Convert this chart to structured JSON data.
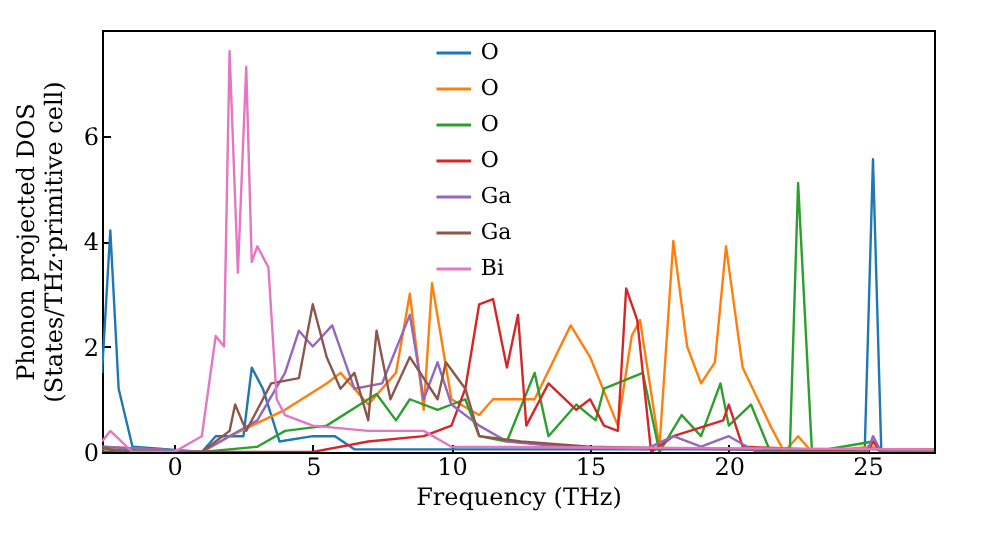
{
  "chart_data": {
    "type": "line",
    "xlabel": "Frequency (THz)",
    "ylabel": "Phonon projected DOS\n(States/THz·primitive cell)",
    "xlim": [
      -2.6,
      27.4
    ],
    "ylim": [
      0,
      8
    ],
    "xticks": [
      0,
      5,
      10,
      15,
      20,
      25
    ],
    "yticks": [
      0,
      2,
      4,
      6
    ],
    "grid": false,
    "legend": "top",
    "series": [
      {
        "name": "O",
        "color": "#1f77b4",
        "x": [
          -2.6,
          -2.3,
          -2.0,
          -1.5,
          1.0,
          1.5,
          2.5,
          2.8,
          3.2,
          3.8,
          5.0,
          5.8,
          6.5,
          10,
          15,
          20,
          24.9,
          25.2,
          25.5,
          27.4
        ],
        "values": [
          1.5,
          4.2,
          1.2,
          0.1,
          0.0,
          0.3,
          0.3,
          1.6,
          1.2,
          0.2,
          0.3,
          0.3,
          0.05,
          0.05,
          0.05,
          0.05,
          0.0,
          5.55,
          0.0,
          0.0
        ]
      },
      {
        "name": "O",
        "color": "#ff7f0e",
        "x": [
          -2.6,
          1.0,
          2.0,
          4.0,
          5.5,
          6.0,
          7.0,
          8.0,
          8.5,
          9.0,
          9.3,
          10.0,
          11.0,
          11.5,
          13.0,
          14.3,
          15.0,
          16.0,
          16.5,
          16.8,
          17.5,
          18.0,
          18.5,
          19.0,
          19.5,
          19.9,
          20.5,
          21.5,
          22.0,
          22.5,
          23.0,
          25.2,
          25.5,
          27.4
        ],
        "values": [
          0.1,
          0.0,
          0.3,
          0.8,
          1.3,
          1.5,
          0.9,
          1.5,
          3.0,
          0.8,
          3.2,
          1.0,
          0.7,
          1.0,
          1.0,
          2.4,
          1.8,
          0.5,
          2.2,
          2.5,
          0.1,
          4.0,
          2.0,
          1.3,
          1.7,
          3.9,
          1.6,
          0.5,
          0.0,
          0.3,
          0.0,
          0.1,
          0.0,
          0.0
        ]
      },
      {
        "name": "O",
        "color": "#2ca02c",
        "x": [
          -2.6,
          1.0,
          3.0,
          4.0,
          5.5,
          7.3,
          8.0,
          8.5,
          9.5,
          10.5,
          11.0,
          12.0,
          13.0,
          13.5,
          14.5,
          15.2,
          15.5,
          16.9,
          17.5,
          18.3,
          19.0,
          19.7,
          20.0,
          20.8,
          21.5,
          22.2,
          22.5,
          23.0,
          25.2,
          25.5,
          27.4
        ],
        "values": [
          0.05,
          0.0,
          0.1,
          0.4,
          0.5,
          1.1,
          0.6,
          1.0,
          0.8,
          1.0,
          0.3,
          0.2,
          1.5,
          0.3,
          0.9,
          0.6,
          1.2,
          1.5,
          0.0,
          0.7,
          0.3,
          1.3,
          0.5,
          0.9,
          0.0,
          0.0,
          5.1,
          0.0,
          0.2,
          0.0,
          0.0
        ]
      },
      {
        "name": "O",
        "color": "#d62728",
        "x": [
          -2.6,
          5.0,
          7.0,
          9.0,
          10.0,
          10.5,
          11.0,
          11.5,
          12.0,
          12.4,
          12.7,
          13.5,
          14.5,
          15.0,
          15.5,
          16.0,
          16.3,
          16.7,
          17.2,
          18.0,
          19.8,
          20.0,
          20.5,
          25.0,
          25.2,
          25.5,
          27.4
        ],
        "values": [
          0.0,
          0.0,
          0.2,
          0.3,
          0.5,
          1.2,
          2.8,
          2.9,
          1.6,
          2.6,
          0.5,
          1.3,
          0.8,
          1.0,
          0.5,
          0.4,
          3.1,
          2.5,
          0.0,
          0.3,
          0.6,
          0.9,
          0.1,
          0.0,
          0.2,
          0.0,
          0.0
        ]
      },
      {
        "name": "Ga",
        "color": "#9467bd",
        "x": [
          -2.6,
          1.0,
          2.0,
          3.0,
          4.0,
          4.5,
          5.0,
          5.7,
          6.5,
          7.5,
          8.5,
          9.0,
          9.5,
          10.0,
          11.0,
          12.0,
          14.0,
          17.0,
          18.0,
          19.0,
          20.0,
          21.0,
          25.0,
          25.2,
          25.5,
          27.4
        ],
        "values": [
          0.1,
          0.0,
          0.3,
          0.6,
          1.5,
          2.3,
          2.0,
          2.4,
          1.2,
          1.3,
          2.6,
          1.0,
          1.7,
          0.9,
          0.5,
          0.2,
          0.1,
          0.05,
          0.3,
          0.1,
          0.3,
          0.0,
          0.0,
          0.3,
          0.0,
          0.0
        ]
      },
      {
        "name": "Ga",
        "color": "#8c564b",
        "x": [
          -2.6,
          -2.0,
          1.0,
          2.0,
          2.2,
          2.6,
          3.0,
          3.5,
          4.5,
          5.0,
          5.5,
          6.0,
          6.5,
          7.0,
          7.3,
          7.8,
          8.5,
          9.5,
          9.8,
          10.5,
          11.0,
          12.5,
          15.0,
          20.0,
          27.4
        ],
        "values": [
          0.1,
          0.0,
          0.0,
          0.4,
          0.9,
          0.4,
          0.8,
          1.3,
          1.4,
          2.8,
          1.8,
          1.2,
          1.5,
          0.6,
          2.3,
          1.0,
          1.8,
          1.0,
          1.7,
          1.2,
          0.3,
          0.2,
          0.1,
          0.05,
          0.05
        ]
      },
      {
        "name": "Bi",
        "color": "#e377c2",
        "x": [
          -2.6,
          -2.3,
          -1.5,
          0.0,
          1.0,
          1.5,
          1.8,
          2.0,
          2.3,
          2.6,
          2.8,
          3.0,
          3.4,
          3.7,
          4.0,
          5.0,
          7.0,
          9.0,
          10.0,
          27.4
        ],
        "values": [
          0.2,
          0.4,
          0.0,
          0.0,
          0.3,
          2.2,
          2.0,
          7.6,
          3.4,
          7.3,
          3.6,
          3.9,
          3.5,
          1.0,
          0.7,
          0.5,
          0.4,
          0.4,
          0.1,
          0.05
        ]
      }
    ]
  }
}
